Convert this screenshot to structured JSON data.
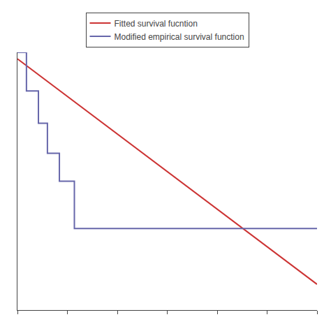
{
  "chart_data": {
    "type": "line",
    "series": [
      {
        "name": "Fitted survival fucntion",
        "type": "line",
        "color": "#cc3333",
        "x": [
          0.0,
          1.0
        ],
        "values": [
          0.97,
          -0.08
        ]
      },
      {
        "name": "Modified empirical survival function",
        "type": "step",
        "color": "#6666aa",
        "x": [
          0.0,
          0.03,
          0.03,
          0.07,
          0.07,
          0.1,
          0.1,
          0.14,
          0.14,
          0.19,
          0.19,
          1.0
        ],
        "values": [
          1.0,
          1.0,
          0.82,
          0.82,
          0.67,
          0.67,
          0.53,
          0.53,
          0.4,
          0.4,
          0.18,
          0.18
        ]
      }
    ],
    "xlim": [
      0,
      1
    ],
    "ylim": [
      -0.2,
      1
    ],
    "xticks": [
      0,
      0.16666666666666666,
      0.3333333333333333,
      0.5,
      0.6666666666666666,
      0.8333333333333334,
      1.0
    ],
    "tick_labels": false,
    "grid": false,
    "legend": "top"
  }
}
